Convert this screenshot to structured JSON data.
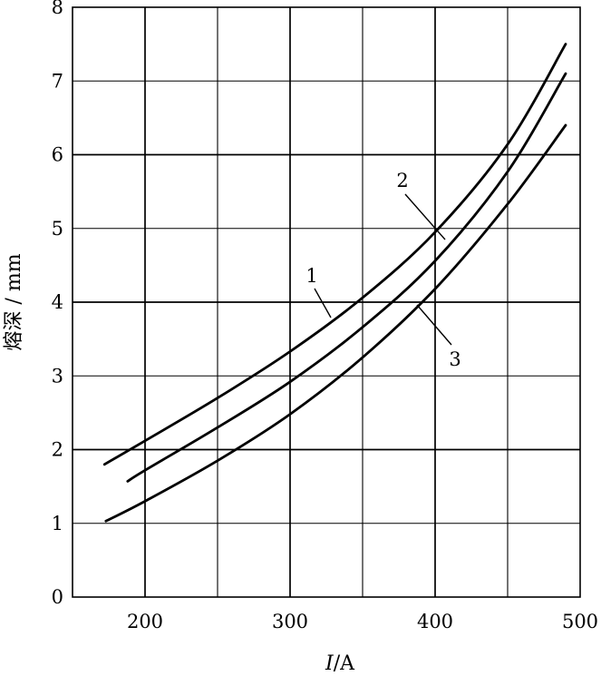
{
  "chart_data": {
    "type": "line",
    "xlabel": {
      "symbol": "I",
      "unit": "/A"
    },
    "ylabel": "熔深 / mm",
    "xlim": [
      150,
      500
    ],
    "ylim": [
      0,
      8
    ],
    "xticks": [
      200,
      300,
      400,
      500
    ],
    "yticks": [
      0,
      1,
      2,
      3,
      4,
      5,
      6,
      7,
      8
    ],
    "grid": true,
    "series": [
      {
        "name": "1",
        "x": [
          172,
          200,
          250,
          300,
          350,
          400,
          450,
          490
        ],
        "y": [
          1.8,
          2.12,
          2.7,
          3.33,
          4.06,
          4.95,
          6.14,
          7.5
        ]
      },
      {
        "name": "2",
        "x": [
          188,
          200,
          250,
          300,
          350,
          400,
          450,
          490
        ],
        "y": [
          1.57,
          1.72,
          2.3,
          2.92,
          3.66,
          4.56,
          5.77,
          7.1
        ]
      },
      {
        "name": "3",
        "x": [
          173,
          200,
          250,
          300,
          350,
          400,
          450,
          490
        ],
        "y": [
          1.03,
          1.3,
          1.85,
          2.48,
          3.25,
          4.18,
          5.33,
          6.4
        ]
      }
    ],
    "annotations": [
      {
        "series": "1",
        "text": "1"
      },
      {
        "series": "2",
        "text": "2"
      },
      {
        "series": "3",
        "text": "3"
      }
    ]
  }
}
